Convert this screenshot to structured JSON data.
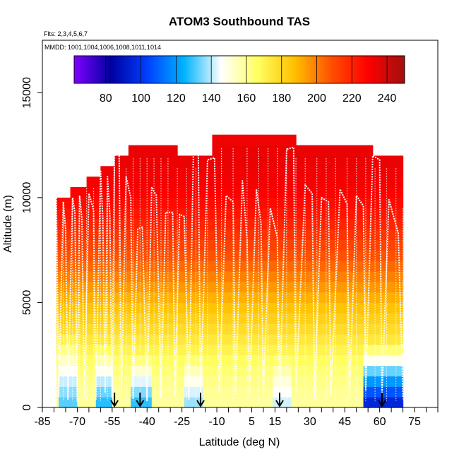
{
  "chart_data": {
    "type": "heatmap",
    "title": "ATOM3 Southbound TAS",
    "subtitle_flights": "Flts: 2,3,4,5,6,7",
    "subtitle_dates": "MMDD: 1001,1004,1006,1008,1011,1014",
    "xlabel": "Latitude (deg N)",
    "ylabel": "Altitude (m)",
    "xlim": [
      -85,
      85
    ],
    "ylim": [
      0,
      17500
    ],
    "x_ticks": [
      -85,
      -70,
      -55,
      -40,
      -25,
      -10,
      5,
      15,
      30,
      45,
      60,
      75
    ],
    "x_tick_labels": [
      "-85",
      "-70",
      "-55",
      "-40",
      "-25",
      "-10",
      "5",
      "15",
      "30",
      "45",
      "60",
      "75"
    ],
    "x_minor_ticks": [
      -80,
      -75,
      -65,
      -60,
      -50,
      -45,
      -35,
      -30,
      -20,
      -15,
      -5,
      0,
      10,
      20,
      25,
      35,
      40,
      50,
      55,
      65,
      70,
      80,
      85
    ],
    "y_ticks": [
      0,
      5000,
      10000,
      15000
    ],
    "y_tick_labels": [
      "0",
      "5000",
      "10000",
      "15000"
    ],
    "colorbar": {
      "range": [
        62,
        250
      ],
      "ticks": [
        80,
        100,
        120,
        140,
        160,
        180,
        200,
        220,
        240
      ],
      "tick_labels": [
        "80",
        "100",
        "120",
        "140",
        "160",
        "180",
        "200",
        "220",
        "240"
      ],
      "colors": [
        "#8000ff",
        "#0000a0",
        "#0040ff",
        "#00b4ff",
        "#ffffff",
        "#ffff60",
        "#ffc000",
        "#ff5000",
        "#ff0000",
        "#a01010"
      ]
    },
    "column_tops_m": [
      {
        "lat_start": -79,
        "lat_end": -73,
        "top": 10000
      },
      {
        "lat_start": -73,
        "lat_end": -66,
        "top": 10500
      },
      {
        "lat_start": -66,
        "lat_end": -60,
        "top": 11000
      },
      {
        "lat_start": -60,
        "lat_end": -54,
        "top": 11500
      },
      {
        "lat_start": -54,
        "lat_end": -48,
        "top": 12000
      },
      {
        "lat_start": -48,
        "lat_end": -27,
        "top": 12500
      },
      {
        "lat_start": -27,
        "lat_end": -12,
        "top": 12000
      },
      {
        "lat_start": -12,
        "lat_end": 24,
        "top": 13000
      },
      {
        "lat_start": 24,
        "lat_end": 57,
        "top": 12500
      },
      {
        "lat_start": 57,
        "lat_end": 70,
        "top": 12000
      }
    ],
    "tas_profile_by_altitude": [
      {
        "alt": 0,
        "tas": 158
      },
      {
        "alt": 1000,
        "tas": 160
      },
      {
        "alt": 2000,
        "tas": 165
      },
      {
        "alt": 3000,
        "tas": 172
      },
      {
        "alt": 4000,
        "tas": 180
      },
      {
        "alt": 5000,
        "tas": 188
      },
      {
        "alt": 6000,
        "tas": 197
      },
      {
        "alt": 7000,
        "tas": 206
      },
      {
        "alt": 8000,
        "tas": 214
      },
      {
        "alt": 9000,
        "tas": 222
      },
      {
        "alt": 10000,
        "tas": 228
      },
      {
        "alt": 11000,
        "tas": 232
      },
      {
        "alt": 12000,
        "tas": 234
      },
      {
        "alt": 13000,
        "tas": 232
      }
    ],
    "low_speed_regions": [
      {
        "lat_start": 53,
        "lat_end": 70,
        "alt_max": 3000,
        "tas_surface": 90
      },
      {
        "lat_start": -78,
        "lat_end": -70,
        "alt_max": 3500,
        "tas_surface": 130
      },
      {
        "lat_start": -62,
        "lat_end": -55,
        "alt_max": 3000,
        "tas_surface": 125
      },
      {
        "lat_start": -47,
        "lat_end": -38,
        "alt_max": 2500,
        "tas_surface": 125
      },
      {
        "lat_start": -24,
        "lat_end": -16,
        "alt_max": 2500,
        "tas_surface": 135
      },
      {
        "lat_start": 14,
        "lat_end": 22,
        "alt_max": 2500,
        "tas_surface": 140
      }
    ],
    "profile_latitudes": [
      -79,
      -76,
      -72,
      -69,
      -66,
      -63,
      -60,
      -57,
      -54,
      -52,
      -49,
      -46,
      -43,
      -40,
      -37,
      -34,
      -31,
      -27,
      -23,
      -19,
      -14,
      -8,
      -3,
      3,
      8,
      12,
      16,
      20,
      24,
      28,
      33,
      37,
      41,
      46,
      50,
      54,
      58,
      63,
      67,
      70
    ],
    "flight_path_points": [
      [
        -79,
        10000
      ],
      [
        -78,
        500
      ],
      [
        -76,
        9800
      ],
      [
        -75,
        8500
      ],
      [
        -74,
        400
      ],
      [
        -72,
        10000
      ],
      [
        -71,
        9300
      ],
      [
        -70,
        300
      ],
      [
        -69,
        10100
      ],
      [
        -68,
        9000
      ],
      [
        -67,
        600
      ],
      [
        -65,
        10200
      ],
      [
        -63,
        9400
      ],
      [
        -62,
        400
      ],
      [
        -60,
        11300
      ],
      [
        -59,
        9000
      ],
      [
        -58,
        700
      ],
      [
        -57,
        11000
      ],
      [
        -56,
        9200
      ],
      [
        -55,
        500
      ],
      [
        -54,
        12000
      ],
      [
        -52,
        12100
      ],
      [
        -51,
        700
      ],
      [
        -49,
        11000
      ],
      [
        -47,
        10000
      ],
      [
        -46,
        400
      ],
      [
        -44,
        8500
      ],
      [
        -42,
        8600
      ],
      [
        -40,
        300
      ],
      [
        -38,
        10500
      ],
      [
        -36,
        10100
      ],
      [
        -34,
        500
      ],
      [
        -32,
        9300
      ],
      [
        -29,
        9300
      ],
      [
        -28,
        600
      ],
      [
        -26,
        9200
      ],
      [
        -24,
        9100
      ],
      [
        -22,
        400
      ],
      [
        -20,
        12500
      ],
      [
        -18,
        12600
      ],
      [
        -17,
        500
      ],
      [
        -14,
        11800
      ],
      [
        -11,
        11900
      ],
      [
        -9,
        700
      ],
      [
        -6,
        10100
      ],
      [
        -3,
        9800
      ],
      [
        -2,
        600
      ],
      [
        1,
        10800
      ],
      [
        3,
        8000
      ],
      [
        4,
        500
      ],
      [
        7,
        10400
      ],
      [
        9,
        8800
      ],
      [
        10,
        600
      ],
      [
        13,
        9500
      ],
      [
        16,
        8100
      ],
      [
        17,
        500
      ],
      [
        20,
        12300
      ],
      [
        23,
        12400
      ],
      [
        24,
        800
      ],
      [
        28,
        10600
      ],
      [
        31,
        10200
      ],
      [
        32,
        500
      ],
      [
        35,
        10000
      ],
      [
        38,
        9800
      ],
      [
        39,
        600
      ],
      [
        43,
        10400
      ],
      [
        46,
        9700
      ],
      [
        47,
        500
      ],
      [
        50,
        10100
      ],
      [
        53,
        9600
      ],
      [
        54,
        800
      ],
      [
        57,
        12000
      ],
      [
        60,
        11800
      ],
      [
        61,
        600
      ],
      [
        64,
        9900
      ],
      [
        68,
        8300
      ],
      [
        70,
        500
      ]
    ],
    "marker_latitudes": [
      -54,
      -43,
      -17,
      17,
      61
    ],
    "marker_symbol": "down-arrow"
  }
}
